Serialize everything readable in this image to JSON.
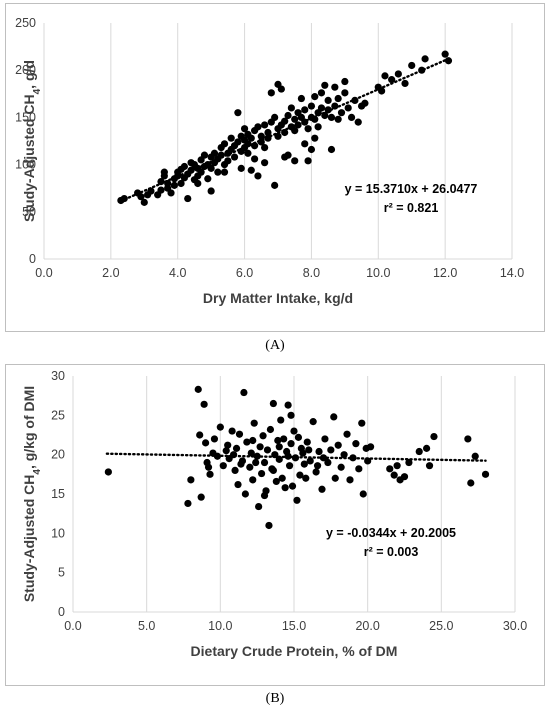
{
  "chart_data": [
    {
      "type": "scatter",
      "panel_label": "(A)",
      "xlabel": "Dry Matter Intake, kg/d",
      "ylabel": "Study-Adjusted CH",
      "ylabel_sub": "4",
      "ylabel_suffix": ", g/d",
      "xlim": [
        0,
        14
      ],
      "ylim": [
        0,
        250
      ],
      "xticks": [
        0,
        2,
        4,
        6,
        8,
        10,
        12,
        14
      ],
      "xtick_labels": [
        "0.0",
        "2.0",
        "4.0",
        "6.0",
        "8.0",
        "10.0",
        "12.0",
        "14.0"
      ],
      "yticks": [
        0,
        50,
        100,
        150,
        200,
        250
      ],
      "ytick_labels": [
        "0",
        "50",
        "100",
        "150",
        "200",
        "250"
      ],
      "grid": "vertical",
      "trendline": {
        "slope": 15.371,
        "intercept": 26.0477,
        "x_range": [
          2.3,
          12.2
        ],
        "style": "dotted"
      },
      "equation": "y = 15.3710x + 26.0477",
      "r2_label": "r² = 0.821",
      "points": [
        [
          2.3,
          62
        ],
        [
          2.4,
          64
        ],
        [
          2.8,
          70
        ],
        [
          2.9,
          66
        ],
        [
          3.0,
          60
        ],
        [
          3.1,
          68
        ],
        [
          3.2,
          72
        ],
        [
          3.4,
          68
        ],
        [
          3.5,
          73
        ],
        [
          3.5,
          82
        ],
        [
          3.6,
          88
        ],
        [
          3.6,
          92
        ],
        [
          3.7,
          75
        ],
        [
          3.7,
          80
        ],
        [
          3.8,
          70
        ],
        [
          3.9,
          85
        ],
        [
          3.9,
          78
        ],
        [
          4.0,
          92
        ],
        [
          4.0,
          88
        ],
        [
          4.1,
          95
        ],
        [
          4.1,
          80
        ],
        [
          4.2,
          98
        ],
        [
          4.2,
          86
        ],
        [
          4.3,
          64
        ],
        [
          4.3,
          90
        ],
        [
          4.4,
          102
        ],
        [
          4.4,
          94
        ],
        [
          4.5,
          84
        ],
        [
          4.5,
          100
        ],
        [
          4.6,
          96
        ],
        [
          4.6,
          88
        ],
        [
          4.7,
          105
        ],
        [
          4.7,
          92
        ],
        [
          4.8,
          98
        ],
        [
          4.8,
          110
        ],
        [
          4.9,
          85
        ],
        [
          4.9,
          100
        ],
        [
          5.0,
          96
        ],
        [
          5.0,
          108
        ],
        [
          5.0,
          72
        ],
        [
          5.1,
          102
        ],
        [
          5.1,
          112
        ],
        [
          5.2,
          92
        ],
        [
          5.2,
          106
        ],
        [
          5.3,
          110
        ],
        [
          5.3,
          118
        ],
        [
          5.4,
          100
        ],
        [
          5.4,
          122
        ],
        [
          5.5,
          112
        ],
        [
          5.5,
          104
        ],
        [
          5.6,
          116
        ],
        [
          5.6,
          128
        ],
        [
          5.7,
          120
        ],
        [
          5.7,
          108
        ],
        [
          5.8,
          124
        ],
        [
          5.8,
          155
        ],
        [
          5.9,
          114
        ],
        [
          5.9,
          130
        ],
        [
          6.0,
          118
        ],
        [
          6.0,
          126
        ],
        [
          6.0,
          138
        ],
        [
          6.1,
          122
        ],
        [
          6.1,
          132
        ],
        [
          6.2,
          128
        ],
        [
          6.2,
          94
        ],
        [
          6.3,
          136
        ],
        [
          6.3,
          120
        ],
        [
          6.4,
          140
        ],
        [
          6.4,
          88
        ],
        [
          6.5,
          130
        ],
        [
          6.5,
          124
        ],
        [
          6.6,
          118
        ],
        [
          6.6,
          142
        ],
        [
          6.7,
          134
        ],
        [
          6.7,
          128
        ],
        [
          6.8,
          145
        ],
        [
          6.8,
          176
        ],
        [
          6.9,
          150
        ],
        [
          6.9,
          78
        ],
        [
          7.0,
          138
        ],
        [
          7.0,
          130
        ],
        [
          7.0,
          185
        ],
        [
          7.1,
          142
        ],
        [
          7.1,
          180
        ],
        [
          7.2,
          134
        ],
        [
          7.2,
          146
        ],
        [
          7.3,
          152
        ],
        [
          7.3,
          110
        ],
        [
          7.4,
          140
        ],
        [
          7.4,
          160
        ],
        [
          7.5,
          148
        ],
        [
          7.5,
          136
        ],
        [
          7.6,
          155
        ],
        [
          7.6,
          142
        ],
        [
          7.7,
          150
        ],
        [
          7.7,
          170
        ],
        [
          7.8,
          145
        ],
        [
          7.8,
          158
        ],
        [
          7.9,
          138
        ],
        [
          7.9,
          104
        ],
        [
          8.0,
          162
        ],
        [
          8.0,
          150
        ],
        [
          8.1,
          148
        ],
        [
          8.1,
          172
        ],
        [
          8.2,
          155
        ],
        [
          8.2,
          140
        ],
        [
          8.3,
          160
        ],
        [
          8.3,
          176
        ],
        [
          8.4,
          152
        ],
        [
          8.4,
          184
        ],
        [
          8.5,
          158
        ],
        [
          8.5,
          168
        ],
        [
          8.6,
          150
        ],
        [
          8.6,
          116
        ],
        [
          8.7,
          162
        ],
        [
          8.7,
          182
        ],
        [
          8.8,
          170
        ],
        [
          8.8,
          148
        ],
        [
          8.9,
          155
        ],
        [
          9.0,
          176
        ],
        [
          9.0,
          188
        ],
        [
          9.1,
          160
        ],
        [
          9.2,
          150
        ],
        [
          9.3,
          168
        ],
        [
          9.4,
          145
        ],
        [
          9.5,
          162
        ],
        [
          9.6,
          165
        ],
        [
          10.0,
          182
        ],
        [
          10.1,
          178
        ],
        [
          10.2,
          194
        ],
        [
          10.4,
          190
        ],
        [
          10.6,
          196
        ],
        [
          10.8,
          186
        ],
        [
          11.0,
          205
        ],
        [
          11.3,
          200
        ],
        [
          11.4,
          212
        ],
        [
          12.0,
          217
        ],
        [
          12.1,
          210
        ],
        [
          6.6,
          102
        ],
        [
          6.3,
          106
        ],
        [
          5.9,
          96
        ],
        [
          7.5,
          104
        ],
        [
          8.0,
          116
        ],
        [
          7.2,
          108
        ],
        [
          6.1,
          112
        ],
        [
          5.4,
          92
        ],
        [
          4.6,
          80
        ],
        [
          7.8,
          122
        ],
        [
          8.1,
          128
        ]
      ]
    },
    {
      "type": "scatter",
      "panel_label": "(B)",
      "xlabel": "Dietary Crude Protein, % of DM",
      "ylabel": "Study-Adjusted CH",
      "ylabel_sub": "4",
      "ylabel_suffix": ", g/kg of DMI",
      "xlim": [
        0,
        30
      ],
      "ylim": [
        0,
        30
      ],
      "xticks": [
        0,
        5,
        10,
        15,
        20,
        25,
        30
      ],
      "xtick_labels": [
        "0.0",
        "5.0",
        "10.0",
        "15.0",
        "20.0",
        "25.0",
        "30.0"
      ],
      "yticks": [
        0,
        5,
        10,
        15,
        20,
        25,
        30
      ],
      "ytick_labels": [
        "0",
        "5",
        "10",
        "15",
        "20",
        "25",
        "30"
      ],
      "grid": "vertical",
      "trendline": {
        "slope": -0.0344,
        "intercept": 20.2005,
        "x_range": [
          2.3,
          28.0
        ],
        "style": "dotted"
      },
      "equation": "y = -0.0344x + 20.2005",
      "r2_label": "r² = 0.003",
      "points": [
        [
          2.4,
          17.8
        ],
        [
          7.8,
          13.8
        ],
        [
          8.0,
          16.8
        ],
        [
          8.5,
          28.3
        ],
        [
          8.6,
          22.5
        ],
        [
          8.7,
          14.6
        ],
        [
          8.9,
          26.4
        ],
        [
          9.0,
          21.5
        ],
        [
          9.1,
          19.0
        ],
        [
          9.3,
          17.5
        ],
        [
          9.5,
          20.2
        ],
        [
          9.6,
          22.0
        ],
        [
          9.8,
          19.8
        ],
        [
          10.0,
          23.5
        ],
        [
          10.2,
          18.6
        ],
        [
          10.4,
          20.5
        ],
        [
          10.5,
          21.2
        ],
        [
          10.6,
          19.5
        ],
        [
          10.8,
          23.0
        ],
        [
          11.0,
          18.0
        ],
        [
          11.1,
          20.8
        ],
        [
          11.2,
          16.2
        ],
        [
          11.3,
          22.6
        ],
        [
          11.5,
          19.2
        ],
        [
          11.6,
          27.9
        ],
        [
          11.7,
          15.0
        ],
        [
          11.8,
          21.6
        ],
        [
          12.0,
          18.4
        ],
        [
          12.1,
          20.2
        ],
        [
          12.2,
          16.8
        ],
        [
          12.3,
          24.0
        ],
        [
          12.5,
          19.8
        ],
        [
          12.6,
          13.4
        ],
        [
          12.7,
          21.0
        ],
        [
          12.8,
          17.6
        ],
        [
          12.9,
          22.4
        ],
        [
          13.0,
          19.0
        ],
        [
          13.1,
          15.4
        ],
        [
          13.2,
          20.6
        ],
        [
          13.3,
          11.0
        ],
        [
          13.4,
          23.2
        ],
        [
          13.5,
          18.2
        ],
        [
          13.6,
          26.5
        ],
        [
          13.7,
          20.0
        ],
        [
          13.8,
          16.6
        ],
        [
          13.9,
          21.8
        ],
        [
          14.0,
          19.4
        ],
        [
          14.1,
          24.4
        ],
        [
          14.2,
          17.0
        ],
        [
          14.3,
          22.0
        ],
        [
          14.4,
          15.8
        ],
        [
          14.5,
          20.4
        ],
        [
          14.6,
          26.3
        ],
        [
          14.7,
          18.6
        ],
        [
          14.8,
          21.4
        ],
        [
          14.9,
          16.0
        ],
        [
          15.0,
          23.0
        ],
        [
          15.1,
          19.6
        ],
        [
          15.2,
          14.2
        ],
        [
          15.3,
          22.2
        ],
        [
          15.4,
          17.4
        ],
        [
          15.5,
          20.8
        ],
        [
          15.7,
          18.8
        ],
        [
          15.9,
          21.6
        ],
        [
          16.1,
          19.2
        ],
        [
          16.3,
          24.2
        ],
        [
          16.5,
          17.8
        ],
        [
          16.7,
          20.4
        ],
        [
          16.9,
          15.6
        ],
        [
          17.1,
          22.0
        ],
        [
          17.3,
          19.0
        ],
        [
          17.5,
          20.6
        ],
        [
          17.7,
          24.8
        ],
        [
          17.8,
          17.0
        ],
        [
          18.0,
          21.2
        ],
        [
          18.2,
          18.4
        ],
        [
          18.4,
          20.0
        ],
        [
          18.6,
          22.6
        ],
        [
          18.8,
          16.8
        ],
        [
          19.0,
          19.6
        ],
        [
          19.2,
          21.4
        ],
        [
          19.4,
          18.2
        ],
        [
          19.6,
          24.0
        ],
        [
          19.7,
          15.0
        ],
        [
          19.9,
          20.8
        ],
        [
          20.0,
          19.2
        ],
        [
          20.2,
          21.0
        ],
        [
          21.5,
          18.2
        ],
        [
          21.8,
          17.4
        ],
        [
          22.0,
          18.6
        ],
        [
          22.2,
          16.8
        ],
        [
          22.5,
          17.2
        ],
        [
          22.8,
          19.0
        ],
        [
          23.5,
          20.4
        ],
        [
          24.0,
          20.8
        ],
        [
          24.2,
          18.6
        ],
        [
          24.5,
          22.3
        ],
        [
          26.8,
          22.0
        ],
        [
          27.0,
          16.4
        ],
        [
          27.3,
          19.8
        ],
        [
          28.0,
          17.5
        ],
        [
          9.2,
          18.4
        ],
        [
          10.9,
          20.0
        ],
        [
          12.4,
          19.0
        ],
        [
          13.6,
          18.0
        ],
        [
          14.6,
          19.8
        ],
        [
          15.6,
          20.2
        ],
        [
          16.6,
          18.6
        ],
        [
          12.2,
          21.8
        ],
        [
          14.0,
          21.0
        ],
        [
          11.4,
          18.8
        ],
        [
          15.8,
          17.0
        ],
        [
          13.0,
          14.8
        ],
        [
          14.8,
          25.0
        ],
        [
          16.0,
          20.6
        ],
        [
          17.0,
          19.6
        ]
      ]
    }
  ]
}
